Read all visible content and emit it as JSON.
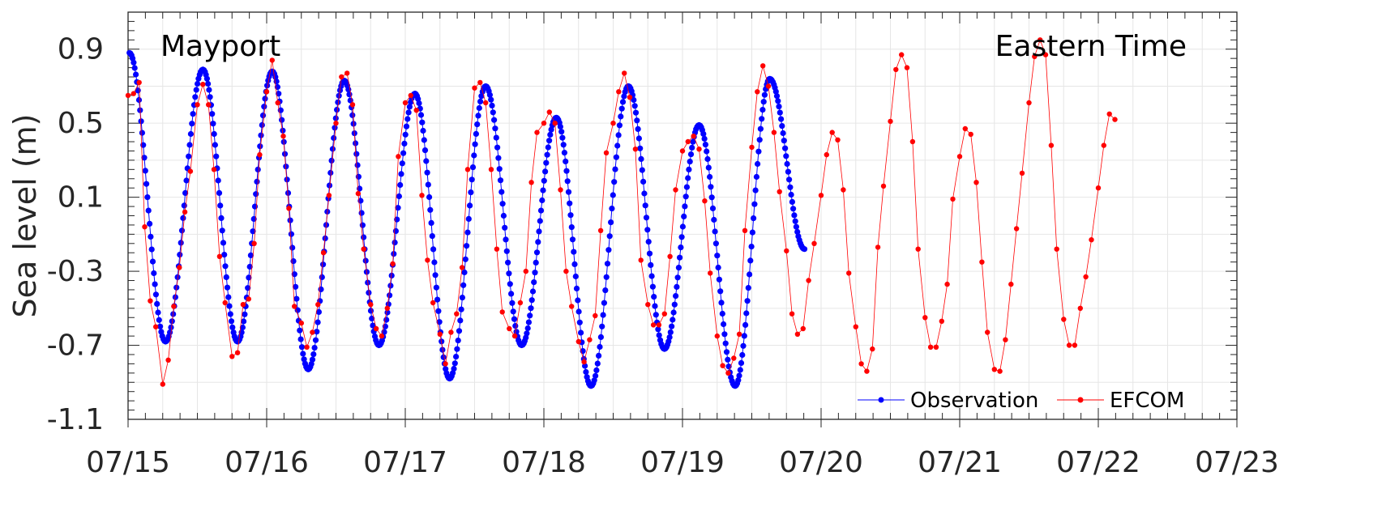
{
  "chart_data": {
    "type": "line",
    "title": "",
    "ylabel": "Sea level (m)",
    "xlabel": "",
    "annotations": {
      "station": "Mayport",
      "timezone": "Eastern Time"
    },
    "x_tick_labels": [
      "07/15",
      "07/16",
      "07/17",
      "07/18",
      "07/19",
      "07/20",
      "07/21",
      "07/22",
      "07/23"
    ],
    "xlim_days": [
      0,
      8
    ],
    "y_ticks": [
      0.9,
      0.5,
      0.1,
      -0.3,
      -0.7,
      -1.1
    ],
    "y_tick_labels": [
      "0.9",
      "0.5",
      "0.1",
      "-0.3",
      "-0.7",
      "-1.1"
    ],
    "ylim": [
      -1.1,
      1.1
    ],
    "grid": true,
    "legend_position": "bottom-right",
    "series": [
      {
        "name": "Observation",
        "color": "#0000ff",
        "marker": "dot",
        "peaks": [
          {
            "t": 0.01,
            "v": 0.88
          },
          {
            "t": 0.27,
            "v": -0.68
          },
          {
            "t": 0.54,
            "v": 0.79
          },
          {
            "t": 0.79,
            "v": -0.68
          },
          {
            "t": 1.04,
            "v": 0.78
          },
          {
            "t": 1.3,
            "v": -0.83
          },
          {
            "t": 1.56,
            "v": 0.73
          },
          {
            "t": 1.81,
            "v": -0.7
          },
          {
            "t": 2.07,
            "v": 0.66
          },
          {
            "t": 2.32,
            "v": -0.88
          },
          {
            "t": 2.58,
            "v": 0.7
          },
          {
            "t": 2.84,
            "v": -0.7
          },
          {
            "t": 3.09,
            "v": 0.53
          },
          {
            "t": 3.34,
            "v": -0.92
          },
          {
            "t": 3.61,
            "v": 0.7
          },
          {
            "t": 3.87,
            "v": -0.72
          },
          {
            "t": 4.12,
            "v": 0.49
          },
          {
            "t": 4.38,
            "v": -0.92
          },
          {
            "t": 4.63,
            "v": 0.74
          },
          {
            "t": 4.88,
            "v": -0.18
          }
        ]
      },
      {
        "name": "EFCOM",
        "color": "#ff0000",
        "marker": "dot",
        "points": [
          [
            0.0,
            0.65
          ],
          [
            0.04,
            0.66
          ],
          [
            0.08,
            0.72
          ],
          [
            0.12,
            -0.06
          ],
          [
            0.16,
            -0.46
          ],
          [
            0.2,
            -0.6
          ],
          [
            0.25,
            -0.91
          ],
          [
            0.29,
            -0.78
          ],
          [
            0.33,
            -0.49
          ],
          [
            0.37,
            -0.28
          ],
          [
            0.41,
            0.02
          ],
          [
            0.45,
            0.24
          ],
          [
            0.5,
            0.6
          ],
          [
            0.54,
            0.71
          ],
          [
            0.58,
            0.6
          ],
          [
            0.62,
            0.25
          ],
          [
            0.66,
            -0.22
          ],
          [
            0.7,
            -0.47
          ],
          [
            0.75,
            -0.76
          ],
          [
            0.79,
            -0.74
          ],
          [
            0.83,
            -0.48
          ],
          [
            0.87,
            -0.45
          ],
          [
            0.91,
            -0.15
          ],
          [
            0.95,
            0.33
          ],
          [
            1.0,
            0.67
          ],
          [
            1.04,
            0.84
          ],
          [
            1.08,
            0.61
          ],
          [
            1.12,
            0.43
          ],
          [
            1.16,
            0.04
          ],
          [
            1.2,
            -0.49
          ],
          [
            1.25,
            -0.58
          ],
          [
            1.29,
            -0.71
          ],
          [
            1.33,
            -0.63
          ],
          [
            1.37,
            -0.48
          ],
          [
            1.41,
            -0.2
          ],
          [
            1.45,
            0.11
          ],
          [
            1.5,
            0.5
          ],
          [
            1.54,
            0.75
          ],
          [
            1.58,
            0.77
          ],
          [
            1.62,
            0.6
          ],
          [
            1.66,
            0.12
          ],
          [
            1.7,
            -0.18
          ],
          [
            1.75,
            -0.48
          ],
          [
            1.79,
            -0.61
          ],
          [
            1.83,
            -0.65
          ],
          [
            1.87,
            -0.5
          ],
          [
            1.91,
            -0.26
          ],
          [
            1.95,
            0.32
          ],
          [
            2.0,
            0.61
          ],
          [
            2.04,
            0.65
          ],
          [
            2.08,
            0.57
          ],
          [
            2.12,
            0.11
          ],
          [
            2.16,
            -0.24
          ],
          [
            2.2,
            -0.47
          ],
          [
            2.25,
            -0.64
          ],
          [
            2.29,
            -0.8
          ],
          [
            2.33,
            -0.63
          ],
          [
            2.37,
            -0.53
          ],
          [
            2.41,
            -0.28
          ],
          [
            2.45,
            0.25
          ],
          [
            2.5,
            0.69
          ],
          [
            2.54,
            0.72
          ],
          [
            2.58,
            0.61
          ],
          [
            2.62,
            0.25
          ],
          [
            2.66,
            -0.18
          ],
          [
            2.7,
            -0.52
          ],
          [
            2.75,
            -0.61
          ],
          [
            2.79,
            -0.65
          ],
          [
            2.83,
            -0.47
          ],
          [
            2.87,
            -0.3
          ],
          [
            2.91,
            0.18
          ],
          [
            2.95,
            0.45
          ],
          [
            3.0,
            0.5
          ],
          [
            3.04,
            0.56
          ],
          [
            3.08,
            0.5
          ],
          [
            3.12,
            0.14
          ],
          [
            3.16,
            -0.3
          ],
          [
            3.2,
            -0.49
          ],
          [
            3.25,
            -0.68
          ],
          [
            3.29,
            -0.79
          ],
          [
            3.33,
            -0.67
          ],
          [
            3.37,
            -0.54
          ],
          [
            3.41,
            -0.08
          ],
          [
            3.45,
            0.34
          ],
          [
            3.5,
            0.5
          ],
          [
            3.54,
            0.67
          ],
          [
            3.58,
            0.77
          ],
          [
            3.62,
            0.64
          ],
          [
            3.66,
            0.36
          ],
          [
            3.7,
            -0.24
          ],
          [
            3.75,
            -0.48
          ],
          [
            3.79,
            -0.59
          ],
          [
            3.83,
            -0.59
          ],
          [
            3.87,
            -0.53
          ],
          [
            3.91,
            -0.22
          ],
          [
            3.95,
            0.14
          ],
          [
            4.0,
            0.35
          ],
          [
            4.04,
            0.4
          ],
          [
            4.08,
            0.43
          ],
          [
            4.12,
            0.36
          ],
          [
            4.16,
            0.08
          ],
          [
            4.2,
            -0.31
          ],
          [
            4.25,
            -0.65
          ],
          [
            4.29,
            -0.81
          ],
          [
            4.33,
            -0.85
          ],
          [
            4.37,
            -0.77
          ],
          [
            4.41,
            -0.64
          ],
          [
            4.45,
            -0.08
          ],
          [
            4.5,
            0.37
          ],
          [
            4.54,
            0.67
          ],
          [
            4.58,
            0.81
          ],
          [
            4.62,
            0.7
          ],
          [
            4.66,
            0.45
          ],
          [
            4.7,
            0.13
          ],
          [
            4.75,
            -0.19
          ],
          [
            4.79,
            -0.53
          ],
          [
            4.83,
            -0.64
          ],
          [
            4.87,
            -0.61
          ],
          [
            4.91,
            -0.35
          ],
          [
            4.95,
            -0.15
          ],
          [
            5.0,
            0.11
          ],
          [
            5.04,
            0.33
          ],
          [
            5.08,
            0.45
          ],
          [
            5.12,
            0.41
          ],
          [
            5.16,
            0.14
          ],
          [
            5.2,
            -0.31
          ],
          [
            5.25,
            -0.6
          ],
          [
            5.29,
            -0.8
          ],
          [
            5.33,
            -0.84
          ],
          [
            5.37,
            -0.72
          ],
          [
            5.41,
            -0.17
          ],
          [
            5.45,
            0.16
          ],
          [
            5.5,
            0.51
          ],
          [
            5.54,
            0.79
          ],
          [
            5.58,
            0.87
          ],
          [
            5.62,
            0.8
          ],
          [
            5.66,
            0.4
          ],
          [
            5.7,
            -0.18
          ],
          [
            5.75,
            -0.55
          ],
          [
            5.79,
            -0.71
          ],
          [
            5.83,
            -0.71
          ],
          [
            5.87,
            -0.57
          ],
          [
            5.91,
            -0.37
          ],
          [
            5.95,
            0.09
          ],
          [
            6.0,
            0.32
          ],
          [
            6.04,
            0.47
          ],
          [
            6.08,
            0.44
          ],
          [
            6.12,
            0.18
          ],
          [
            6.16,
            -0.25
          ],
          [
            6.2,
            -0.63
          ],
          [
            6.25,
            -0.83
          ],
          [
            6.29,
            -0.84
          ],
          [
            6.33,
            -0.67
          ],
          [
            6.37,
            -0.37
          ],
          [
            6.41,
            -0.07
          ],
          [
            6.45,
            0.23
          ],
          [
            6.5,
            0.61
          ],
          [
            6.54,
            0.86
          ],
          [
            6.58,
            0.95
          ],
          [
            6.62,
            0.87
          ],
          [
            6.66,
            0.38
          ],
          [
            6.7,
            -0.18
          ],
          [
            6.75,
            -0.56
          ],
          [
            6.79,
            -0.7
          ],
          [
            6.83,
            -0.7
          ],
          [
            6.87,
            -0.5
          ],
          [
            6.91,
            -0.33
          ],
          [
            6.95,
            -0.13
          ],
          [
            7.0,
            0.15
          ],
          [
            7.04,
            0.38
          ],
          [
            7.08,
            0.55
          ],
          [
            7.12,
            0.52
          ]
        ]
      }
    ]
  }
}
